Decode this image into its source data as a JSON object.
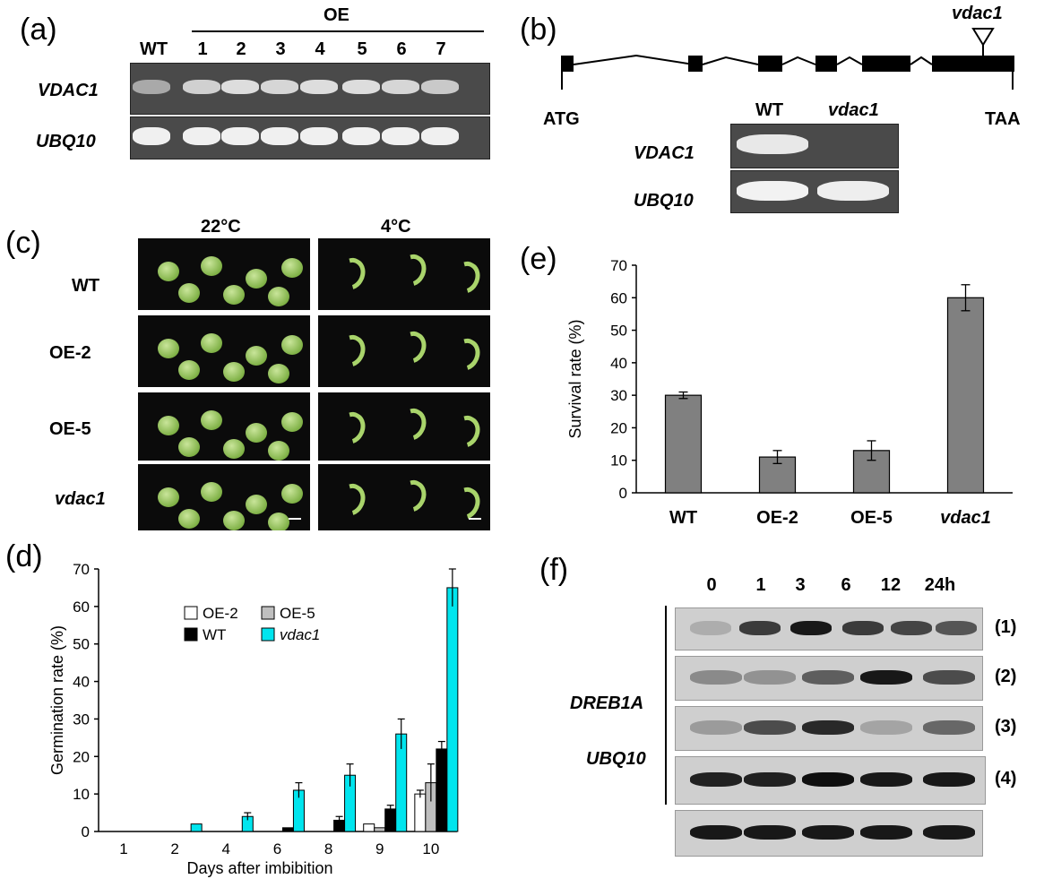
{
  "panels": {
    "a": {
      "label": "(a)",
      "group_label": "OE",
      "lanes": [
        "WT",
        "1",
        "2",
        "3",
        "4",
        "5",
        "6",
        "7"
      ],
      "rows": [
        "VDAC1",
        "UBQ10"
      ]
    },
    "b": {
      "label": "(b)",
      "insert_label": "vdac1",
      "start_codon": "ATG",
      "stop_codon": "TAA",
      "lanes": [
        "WT",
        "vdac1"
      ],
      "rows": [
        "VDAC1",
        "UBQ10"
      ]
    },
    "c": {
      "label": "(c)",
      "columns": [
        "22°C",
        "4°C"
      ],
      "rows": [
        "WT",
        "OE-2",
        "OE-5",
        "vdac1"
      ]
    },
    "d": {
      "label": "(d)"
    },
    "e": {
      "label": "(e)"
    },
    "f": {
      "label": "(f)",
      "timepoints": [
        "0",
        "1",
        "3",
        "6",
        "12",
        "24h"
      ],
      "gene": "DREB1A",
      "replicates": [
        "(1)",
        "(2)",
        "(3)",
        "(4)"
      ],
      "control": "UBQ10"
    }
  },
  "chart_data": [
    {
      "type": "bar",
      "panel": "d",
      "title": "",
      "xlabel": "Days after imbibition",
      "ylabel": "Germination rate (%)",
      "categories": [
        "1",
        "2",
        "4",
        "6",
        "8",
        "9",
        "10"
      ],
      "ylim": [
        0,
        70
      ],
      "yticks": [
        0,
        10,
        20,
        30,
        40,
        50,
        60,
        70
      ],
      "legend_position": "top-left",
      "series": [
        {
          "name": "OE-2",
          "color": "#ffffff",
          "values": [
            0,
            0,
            0,
            0,
            0,
            2,
            10
          ],
          "errors": [
            0,
            0,
            0,
            0,
            0,
            0,
            1
          ]
        },
        {
          "name": "OE-5",
          "color": "#bfbfbf",
          "values": [
            0,
            0,
            0,
            0,
            0,
            1,
            13
          ],
          "errors": [
            0,
            0,
            0,
            0,
            0,
            0,
            5
          ]
        },
        {
          "name": "WT",
          "color": "#000000",
          "values": [
            0,
            0,
            0,
            1,
            3,
            6,
            22
          ],
          "errors": [
            0,
            0,
            0,
            0,
            1,
            1,
            2
          ]
        },
        {
          "name": "vdac1",
          "color": "#00e5ee",
          "values": [
            0,
            2,
            4,
            11,
            15,
            26,
            65
          ],
          "errors": [
            0,
            0,
            1,
            2,
            3,
            4,
            5
          ]
        }
      ]
    },
    {
      "type": "bar",
      "panel": "e",
      "title": "",
      "xlabel": "",
      "ylabel": "Survival rate (%)",
      "categories": [
        "WT",
        "OE-2",
        "OE-5",
        "vdac1"
      ],
      "ylim": [
        0,
        70
      ],
      "yticks": [
        0,
        10,
        20,
        30,
        40,
        50,
        60,
        70
      ],
      "series": [
        {
          "name": "",
          "color": "#808080",
          "values": [
            30,
            11,
            13,
            60
          ],
          "errors": [
            1,
            2,
            3,
            4
          ]
        }
      ]
    }
  ]
}
